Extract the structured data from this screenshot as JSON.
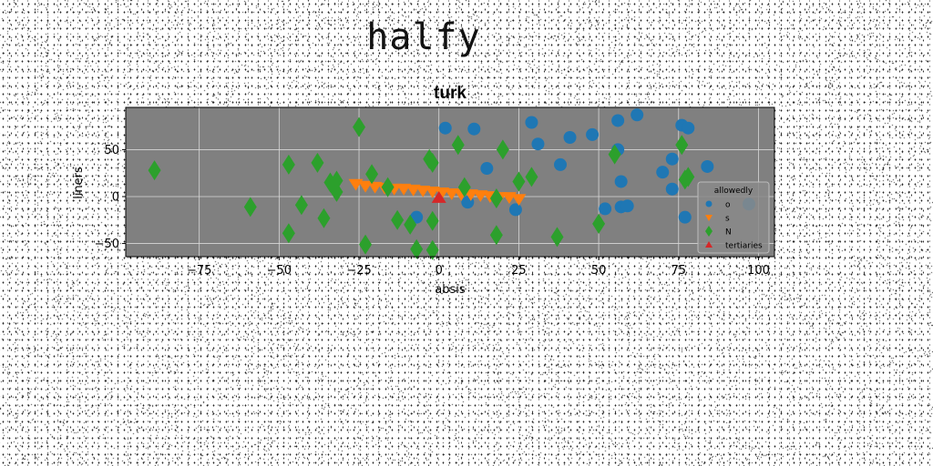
{
  "figure_title": "halfy",
  "chart_data": {
    "type": "scatter",
    "title": "turk",
    "xlabel": "absis",
    "ylabel": "liners",
    "xlim": [
      -98,
      105
    ],
    "ylim": [
      -64,
      95
    ],
    "xticks": [
      -75,
      -50,
      -25,
      0,
      25,
      50,
      75,
      100
    ],
    "yticks": [
      -50,
      0,
      50
    ],
    "grid": true,
    "background": "#808080",
    "legend": {
      "title": "allowedly",
      "placement": "lower-right"
    },
    "series": [
      {
        "name": "o",
        "marker": "circle",
        "color": "#1f77b4",
        "points": [
          [
            2,
            73
          ],
          [
            11,
            72
          ],
          [
            29,
            79
          ],
          [
            31,
            56
          ],
          [
            15,
            30
          ],
          [
            24,
            -14
          ],
          [
            9,
            -6
          ],
          [
            -7,
            -22
          ],
          [
            38,
            34
          ],
          [
            41,
            63
          ],
          [
            48,
            66
          ],
          [
            52,
            -13
          ],
          [
            56,
            81
          ],
          [
            56,
            50
          ],
          [
            57,
            16
          ],
          [
            57,
            -11
          ],
          [
            59,
            -10
          ],
          [
            62,
            87
          ],
          [
            70,
            26
          ],
          [
            73,
            40
          ],
          [
            73,
            8
          ],
          [
            76,
            76
          ],
          [
            78,
            73
          ],
          [
            77,
            -22
          ],
          [
            84,
            32
          ],
          [
            97,
            -8
          ]
        ]
      },
      {
        "name": "s",
        "marker": "triangle-down",
        "color": "#ff7f0e",
        "points": [
          [
            -26,
            14
          ],
          [
            -23,
            12
          ],
          [
            -20,
            11
          ],
          [
            -17,
            10
          ],
          [
            -14,
            9
          ],
          [
            -11,
            9
          ],
          [
            -8,
            8
          ],
          [
            -5,
            7
          ],
          [
            -2,
            6
          ],
          [
            1,
            5
          ],
          [
            4,
            4
          ],
          [
            7,
            3
          ],
          [
            10,
            3
          ],
          [
            13,
            2
          ],
          [
            16,
            1
          ],
          [
            19,
            0
          ],
          [
            22,
            0
          ],
          [
            25,
            -2
          ]
        ]
      },
      {
        "name": "N",
        "marker": "thin-diamond",
        "color": "#2ca02c",
        "points": [
          [
            -89,
            28
          ],
          [
            -59,
            -11
          ],
          [
            -47,
            34
          ],
          [
            -47,
            -39
          ],
          [
            -43,
            -9
          ],
          [
            -38,
            36
          ],
          [
            -36,
            -23
          ],
          [
            -34,
            15
          ],
          [
            -32,
            17
          ],
          [
            -32,
            5
          ],
          [
            -25,
            74
          ],
          [
            -23,
            -51
          ],
          [
            -21,
            24
          ],
          [
            -16,
            10
          ],
          [
            -13,
            -25
          ],
          [
            -9,
            -30
          ],
          [
            -7,
            -56
          ],
          [
            -3,
            40
          ],
          [
            -2,
            36
          ],
          [
            -2,
            -26
          ],
          [
            -2,
            -57
          ],
          [
            6,
            55
          ],
          [
            8,
            10
          ],
          [
            18,
            -2
          ],
          [
            18,
            -41
          ],
          [
            20,
            50
          ],
          [
            25,
            16
          ],
          [
            29,
            21
          ],
          [
            37,
            -43
          ],
          [
            50,
            -29
          ],
          [
            55,
            45
          ],
          [
            76,
            55
          ],
          [
            78,
            21
          ],
          [
            77,
            18
          ]
        ]
      },
      {
        "name": "tertiaries",
        "marker": "triangle-up",
        "color": "#d62728",
        "points": [
          [
            0,
            -2
          ]
        ]
      }
    ]
  }
}
